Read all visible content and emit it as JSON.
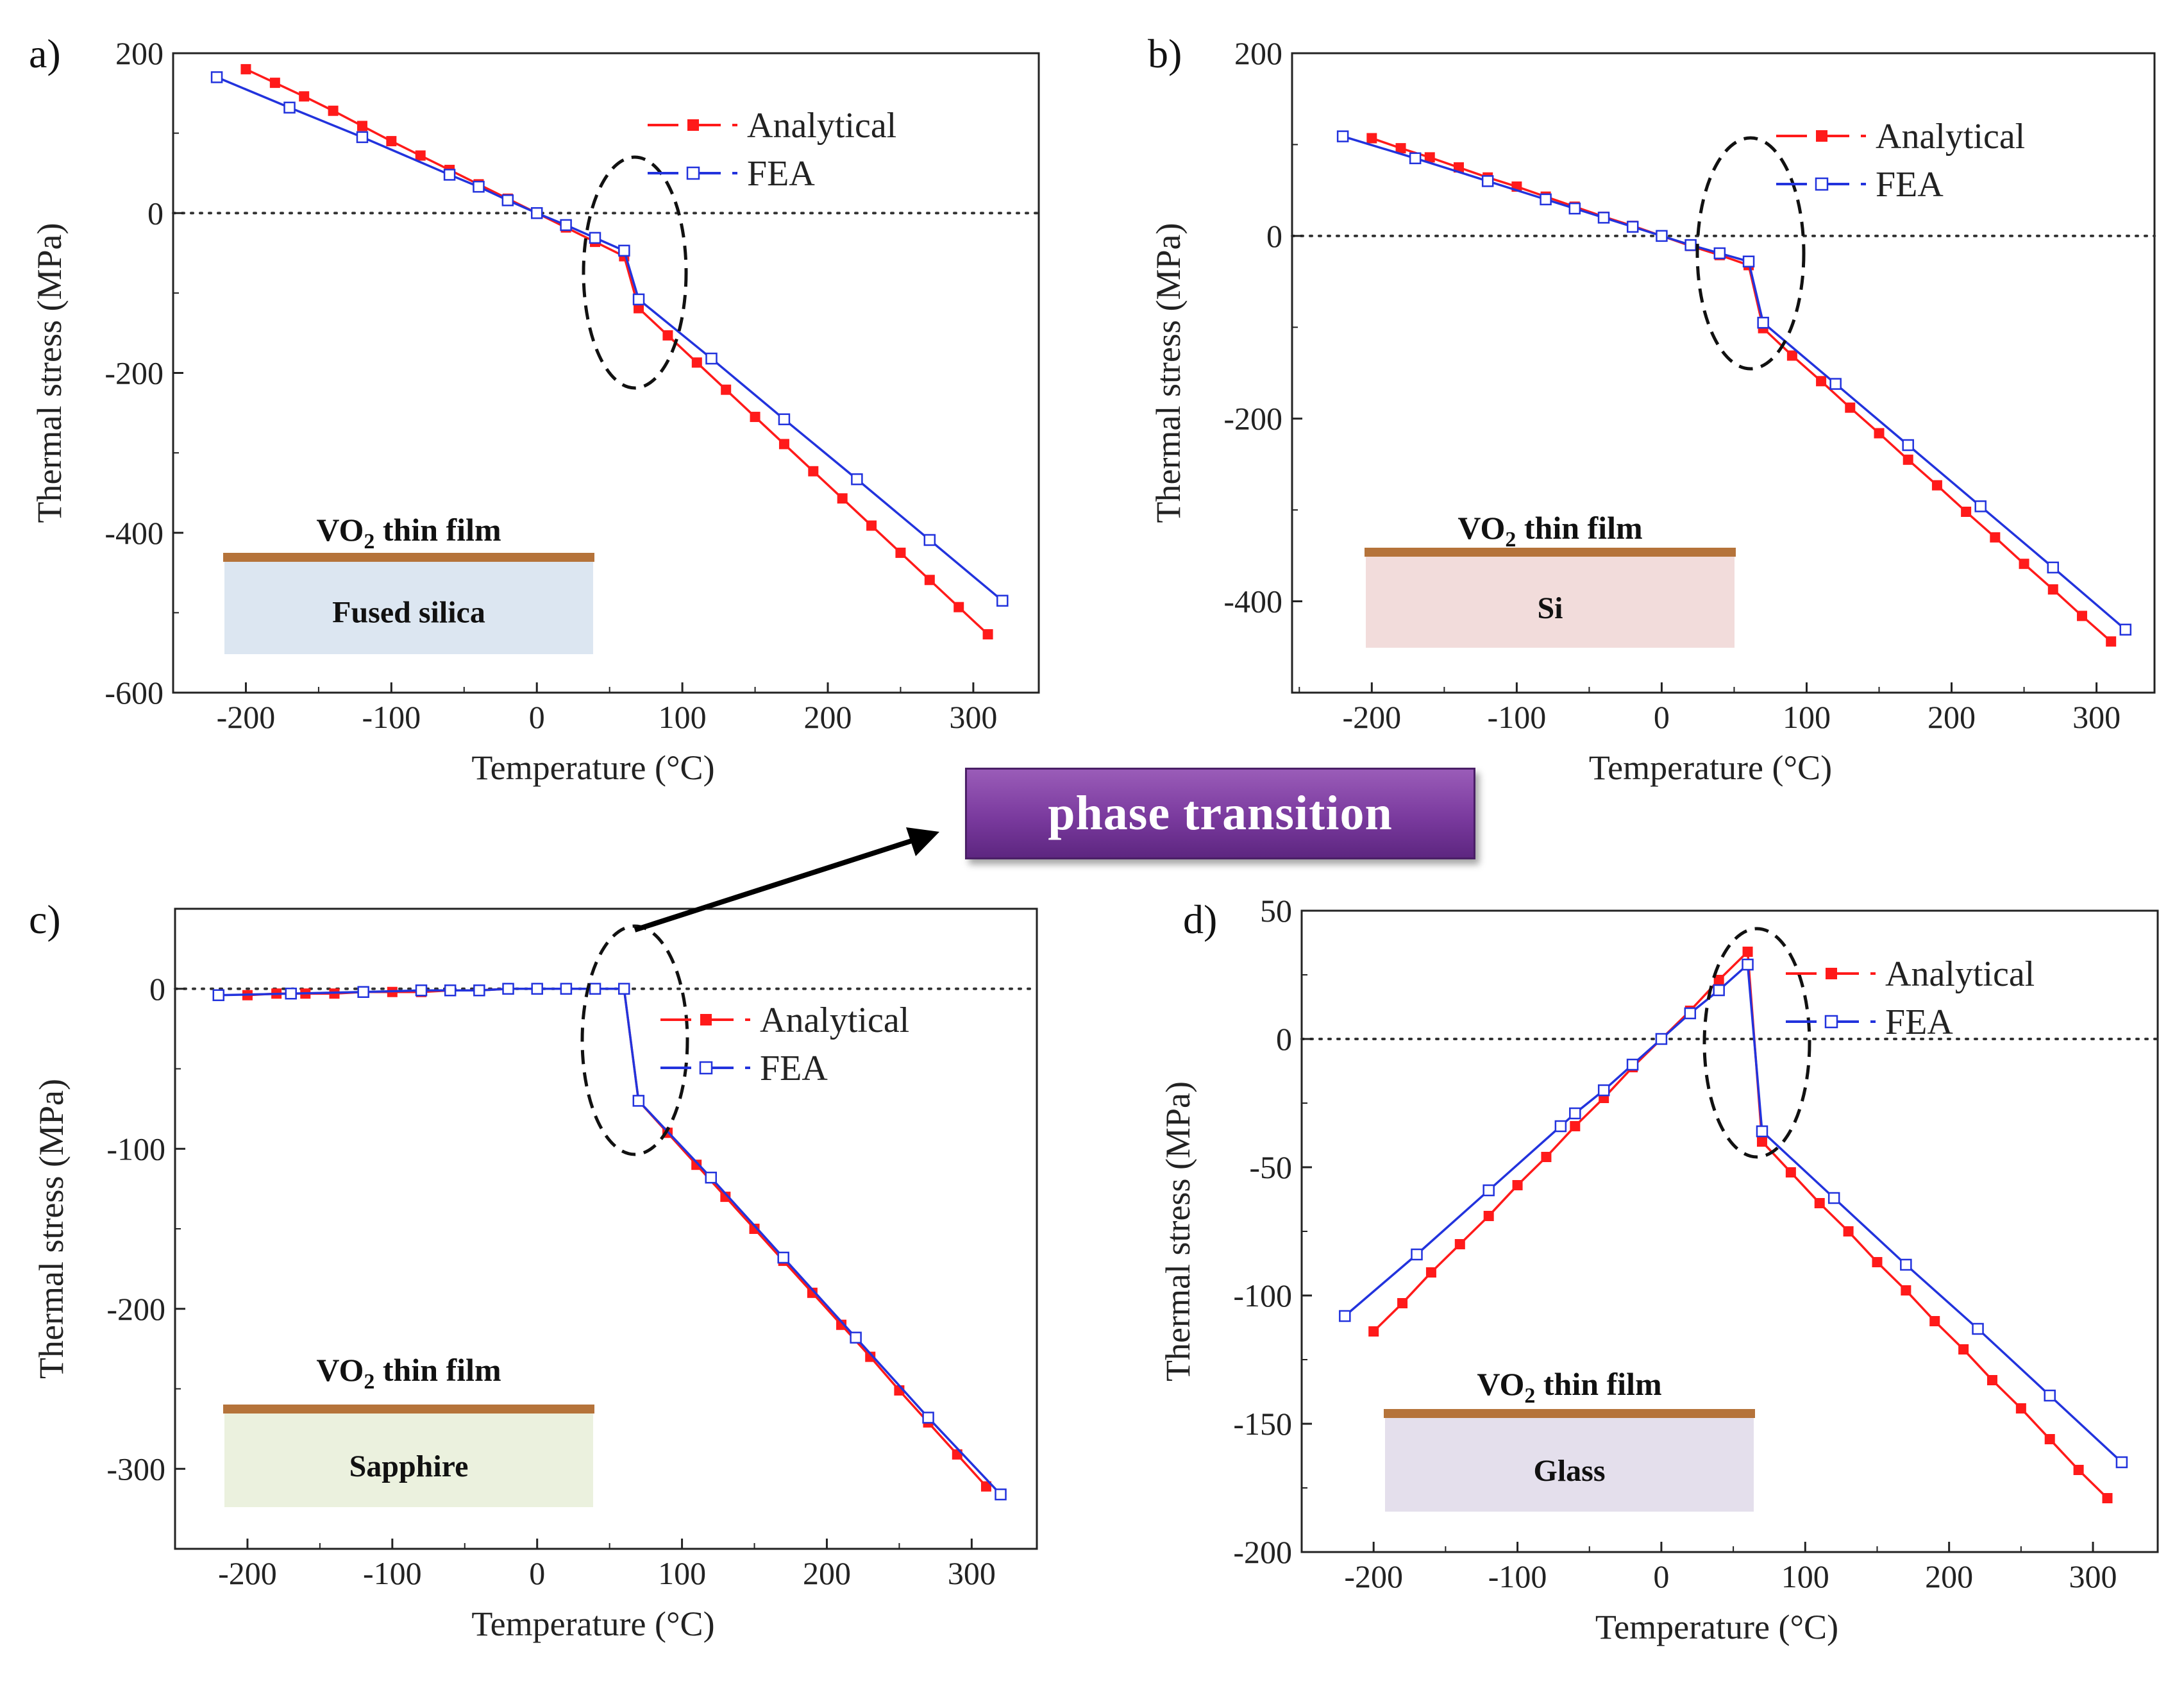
{
  "annotation": {
    "label": "phase transition"
  },
  "chart_data": [
    {
      "panel": "a)",
      "type": "line",
      "substrate": "Fused silica",
      "film_label": "VO2 thin film",
      "xlabel": "Temperature (°C)",
      "ylabel": "Thermal stress (MPa)",
      "xlim": [
        -250,
        345
      ],
      "ylim": [
        -600,
        200
      ],
      "xticks": [
        -200,
        -100,
        0,
        100,
        200,
        300
      ],
      "yticks": [
        -600,
        -400,
        -200,
        0,
        200
      ],
      "legend": [
        "Analytical",
        "FEA"
      ],
      "legend_position": "top-right",
      "series": [
        {
          "name": "Analytical",
          "color": "#ff1a1a",
          "marker": "filled-square",
          "x": [
            -200,
            -180,
            -160,
            -140,
            -120,
            -100,
            -80,
            -60,
            -40,
            -20,
            0,
            20,
            40,
            60,
            70,
            90,
            110,
            130,
            150,
            170,
            190,
            210,
            230,
            250,
            270,
            290,
            310
          ],
          "y": [
            180,
            163,
            146,
            128,
            109,
            90,
            72,
            54,
            36,
            18,
            0,
            -18,
            -36,
            -54,
            -119,
            -153,
            -187,
            -221,
            -255,
            -289,
            -323,
            -357,
            -391,
            -425,
            -459,
            -493,
            -527
          ]
        },
        {
          "name": "FEA",
          "color": "#2233dd",
          "marker": "open-square",
          "x": [
            -220,
            -170,
            -120,
            -60,
            -40,
            -20,
            0,
            20,
            40,
            60,
            70,
            120,
            170,
            220,
            270,
            320
          ],
          "y": [
            170,
            132,
            95,
            48,
            33,
            16,
            0,
            -15,
            -31,
            -47,
            -108,
            -182,
            -258,
            -333,
            -409,
            -485
          ]
        }
      ]
    },
    {
      "panel": "b)",
      "type": "line",
      "substrate": "Si",
      "film_label": "VO2 thin film",
      "xlabel": "Temperature (°C)",
      "ylabel": "Thermal stress (MPa)",
      "xlim": [
        -255,
        340
      ],
      "ylim": [
        -500,
        200
      ],
      "xticks": [
        -200,
        -100,
        0,
        100,
        200,
        300
      ],
      "yticks": [
        -400,
        -200,
        0,
        200
      ],
      "legend": [
        "Analytical",
        "FEA"
      ],
      "legend_position": "top-right",
      "series": [
        {
          "name": "Analytical",
          "color": "#ff1a1a",
          "marker": "filled-square",
          "x": [
            -200,
            -180,
            -160,
            -140,
            -120,
            -100,
            -80,
            -60,
            -40,
            -20,
            0,
            20,
            40,
            60,
            70,
            90,
            110,
            130,
            150,
            170,
            190,
            210,
            230,
            250,
            270,
            290,
            310
          ],
          "y": [
            107,
            96,
            86,
            75,
            64,
            54,
            43,
            32,
            21,
            11,
            0,
            -11,
            -21,
            -32,
            -101,
            -131,
            -159,
            -188,
            -216,
            -245,
            -273,
            -302,
            -330,
            -359,
            -387,
            -416,
            -444
          ]
        },
        {
          "name": "FEA",
          "color": "#2233dd",
          "marker": "open-square",
          "x": [
            -220,
            -170,
            -120,
            -80,
            -60,
            -40,
            -20,
            0,
            20,
            40,
            60,
            70,
            120,
            170,
            220,
            270,
            320
          ],
          "y": [
            109,
            85,
            60,
            40,
            30,
            20,
            10,
            0,
            -10,
            -19,
            -28,
            -95,
            -162,
            -229,
            -296,
            -363,
            -431
          ]
        }
      ]
    },
    {
      "panel": "c)",
      "type": "line",
      "substrate": "Sapphire",
      "film_label": "VO2 thin film",
      "xlabel": "Temperature (°C)",
      "ylabel": "Thermal stress (MPa)",
      "xlim": [
        -250,
        345
      ],
      "ylim": [
        -350,
        50
      ],
      "xticks": [
        -200,
        -100,
        0,
        100,
        200,
        300
      ],
      "yticks": [
        -300,
        -200,
        -100,
        0
      ],
      "legend": [
        "Analytical",
        "FEA"
      ],
      "legend_position": "top-right",
      "series": [
        {
          "name": "Analytical",
          "color": "#ff1a1a",
          "marker": "filled-square",
          "x": [
            -200,
            -180,
            -160,
            -140,
            -120,
            -100,
            -80,
            -60,
            -40,
            -20,
            0,
            20,
            40,
            60,
            70,
            90,
            110,
            130,
            150,
            170,
            190,
            210,
            230,
            250,
            270,
            290,
            310
          ],
          "y": [
            -4,
            -3,
            -3,
            -3,
            -2,
            -2,
            -2,
            -1,
            -1,
            0,
            0,
            0,
            0,
            0,
            -70,
            -90,
            -110,
            -130,
            -150,
            -170,
            -190,
            -210,
            -230,
            -251,
            -271,
            -291,
            -311
          ]
        },
        {
          "name": "FEA",
          "color": "#2233dd",
          "marker": "open-square",
          "x": [
            -220,
            -170,
            -120,
            -80,
            -60,
            -40,
            -20,
            0,
            20,
            40,
            60,
            70,
            120,
            170,
            220,
            270,
            320
          ],
          "y": [
            -4,
            -3,
            -2,
            -1,
            -1,
            -1,
            0,
            0,
            0,
            0,
            0,
            -70,
            -118,
            -168,
            -218,
            -268,
            -316
          ]
        }
      ]
    },
    {
      "panel": "d)",
      "type": "line",
      "substrate": "Glass",
      "film_label": "VO2 thin film",
      "xlabel": "Temperature (°C)",
      "ylabel": "Thermal stress (MPa)",
      "xlim": [
        -250,
        345
      ],
      "ylim": [
        -200,
        50
      ],
      "xticks": [
        -200,
        -100,
        0,
        100,
        200,
        300
      ],
      "yticks": [
        -200,
        -150,
        -100,
        -50,
        0,
        50
      ],
      "legend": [
        "Analytical",
        "FEA"
      ],
      "legend_position": "top-right",
      "series": [
        {
          "name": "Analytical",
          "color": "#ff1a1a",
          "marker": "filled-square",
          "x": [
            -200,
            -180,
            -160,
            -140,
            -120,
            -100,
            -80,
            -60,
            -40,
            -20,
            0,
            20,
            40,
            60,
            70,
            90,
            110,
            130,
            150,
            170,
            190,
            210,
            230,
            250,
            270,
            290,
            310
          ],
          "y": [
            -114,
            -103,
            -91,
            -80,
            -69,
            -57,
            -46,
            -34,
            -23,
            -11,
            0,
            11,
            23,
            34,
            -40,
            -52,
            -64,
            -75,
            -87,
            -98,
            -110,
            -121,
            -133,
            -144,
            -156,
            -168,
            -179
          ]
        },
        {
          "name": "FEA",
          "color": "#2233dd",
          "marker": "open-square",
          "x": [
            -220,
            -170,
            -120,
            -70,
            -60,
            -40,
            -20,
            0,
            20,
            40,
            60,
            70,
            120,
            170,
            220,
            270,
            320
          ],
          "y": [
            -108,
            -84,
            -59,
            -34,
            -29,
            -20,
            -10,
            0,
            10,
            19,
            29,
            -36,
            -62,
            -88,
            -113,
            -139,
            -165
          ]
        }
      ]
    }
  ]
}
